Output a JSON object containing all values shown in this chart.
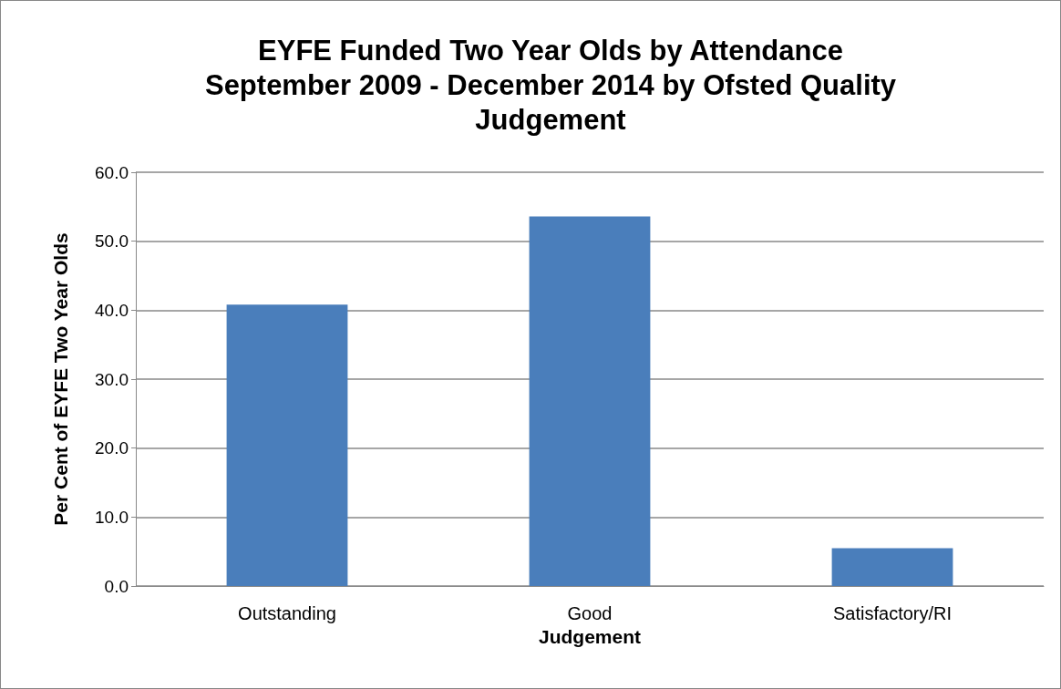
{
  "chart_data": {
    "type": "bar",
    "title": "EYFE Funded Two Year Olds by Attendance\nSeptember 2009 - December 2014 by Ofsted Quality\nJudgement",
    "xlabel": "Judgement",
    "ylabel": "Per Cent of EYFE Two Year Olds",
    "categories": [
      "Outstanding",
      "Good",
      "Satisfactory/RI"
    ],
    "values": [
      40.8,
      53.6,
      5.5
    ],
    "color": "#4a7ebb",
    "ylim": [
      0,
      60
    ],
    "yticks": [
      {
        "value": 0,
        "label": "0.0"
      },
      {
        "value": 10,
        "label": "10.0"
      },
      {
        "value": 20,
        "label": "20.0"
      },
      {
        "value": 30,
        "label": "30.0"
      },
      {
        "value": 40,
        "label": "40.0"
      },
      {
        "value": 50,
        "label": "50.0"
      },
      {
        "value": 60,
        "label": "60.0"
      }
    ],
    "grid": "y"
  }
}
